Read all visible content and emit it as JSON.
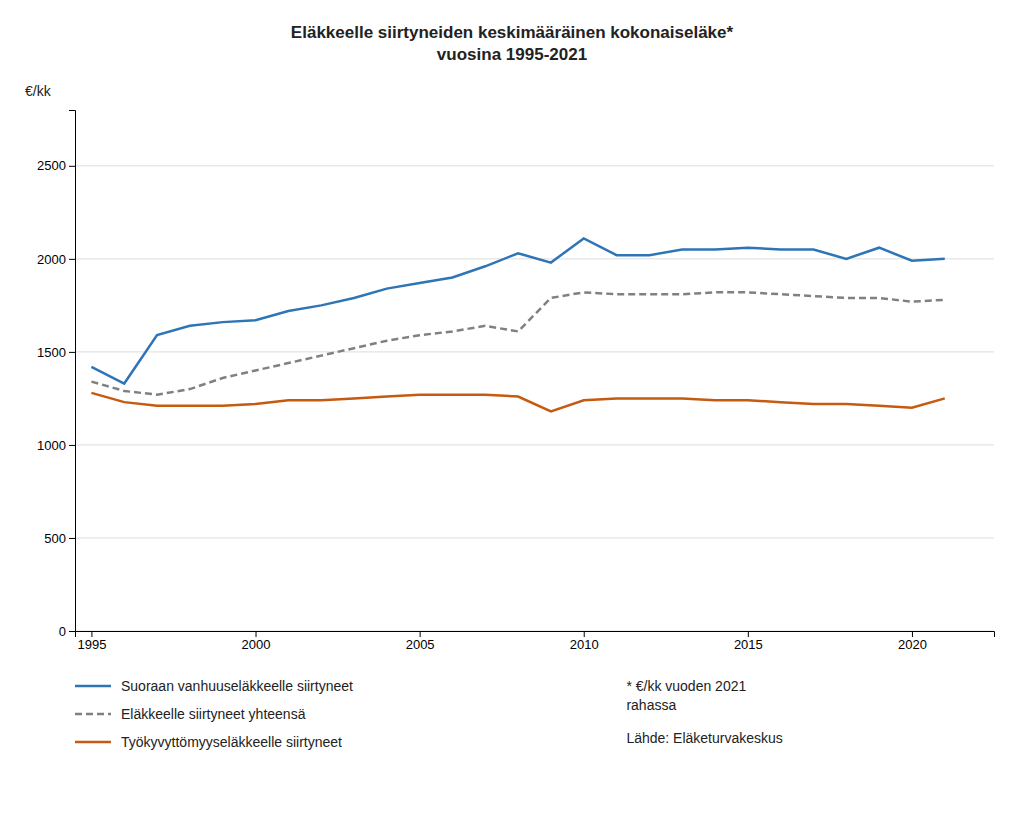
{
  "chart_data": {
    "type": "line",
    "title": "Eläkkeelle siirtyneiden keskimääräinen kokonaiseläke*\nvuosina 1995-2021",
    "ylabel": "€/kk",
    "x": [
      1995,
      1996,
      1997,
      1998,
      1999,
      2000,
      2001,
      2002,
      2003,
      2004,
      2005,
      2006,
      2007,
      2008,
      2009,
      2010,
      2011,
      2012,
      2013,
      2014,
      2015,
      2016,
      2017,
      2018,
      2019,
      2020,
      2021
    ],
    "series": [
      {
        "name": "Suoraan vanhuuseläkkeelle siirtyneet",
        "color": "#2E75B6",
        "line_style": "solid",
        "values": [
          1420,
          1330,
          1590,
          1640,
          1660,
          1670,
          1720,
          1750,
          1790,
          1840,
          1870,
          1900,
          1960,
          2030,
          1980,
          2110,
          2020,
          2020,
          2050,
          2050,
          2060,
          2050,
          2050,
          2000,
          2060,
          1990,
          2000
        ]
      },
      {
        "name": "Eläkkeelle siirtyneet yhteensä",
        "color": "#808080",
        "line_style": "dashed",
        "values": [
          1340,
          1290,
          1270,
          1300,
          1360,
          1400,
          1440,
          1480,
          1520,
          1560,
          1590,
          1610,
          1640,
          1610,
          1790,
          1820,
          1810,
          1810,
          1810,
          1820,
          1820,
          1810,
          1800,
          1790,
          1790,
          1770,
          1780
        ]
      },
      {
        "name": "Työkyvyttömyyseläkkeelle siirtyneet",
        "color": "#C55A11",
        "line_style": "solid",
        "values": [
          1280,
          1230,
          1210,
          1210,
          1210,
          1220,
          1240,
          1240,
          1250,
          1260,
          1270,
          1270,
          1270,
          1260,
          1180,
          1240,
          1250,
          1250,
          1250,
          1240,
          1240,
          1230,
          1220,
          1220,
          1210,
          1200,
          1250
        ]
      }
    ],
    "annotations": [
      "* €/kk vuoden 2021\nrahassa",
      "Lähde: Eläketurvakeskus"
    ],
    "xlim": [
      1994.5,
      2022.5
    ],
    "xticks": [
      1995,
      2000,
      2005,
      2010,
      2015,
      2020
    ],
    "ylim": [
      0,
      2800
    ],
    "yticks": [
      0,
      500,
      1000,
      1500,
      2000,
      2500
    ],
    "grid": true,
    "legend": "bottom"
  }
}
